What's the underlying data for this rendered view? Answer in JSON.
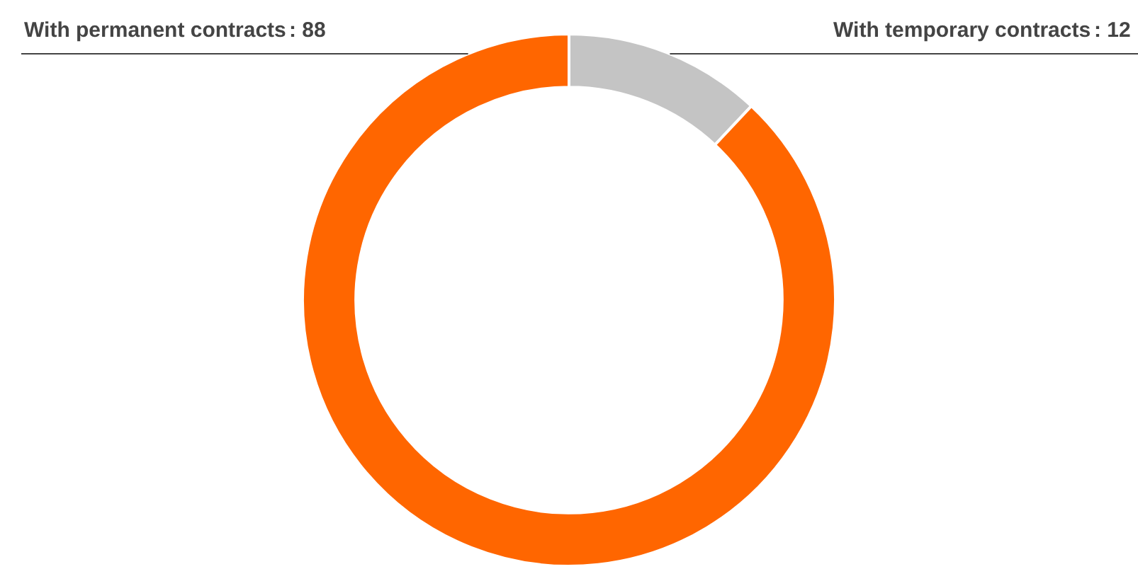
{
  "chart_data": {
    "type": "donut",
    "categories": [
      "With temporary contracts",
      "With permanent contracts"
    ],
    "values": [
      12,
      88
    ],
    "value_labels": [
      ": 12",
      ": 88"
    ],
    "colors": [
      "#c4c4c4",
      "#ff6600"
    ],
    "legend": false
  }
}
